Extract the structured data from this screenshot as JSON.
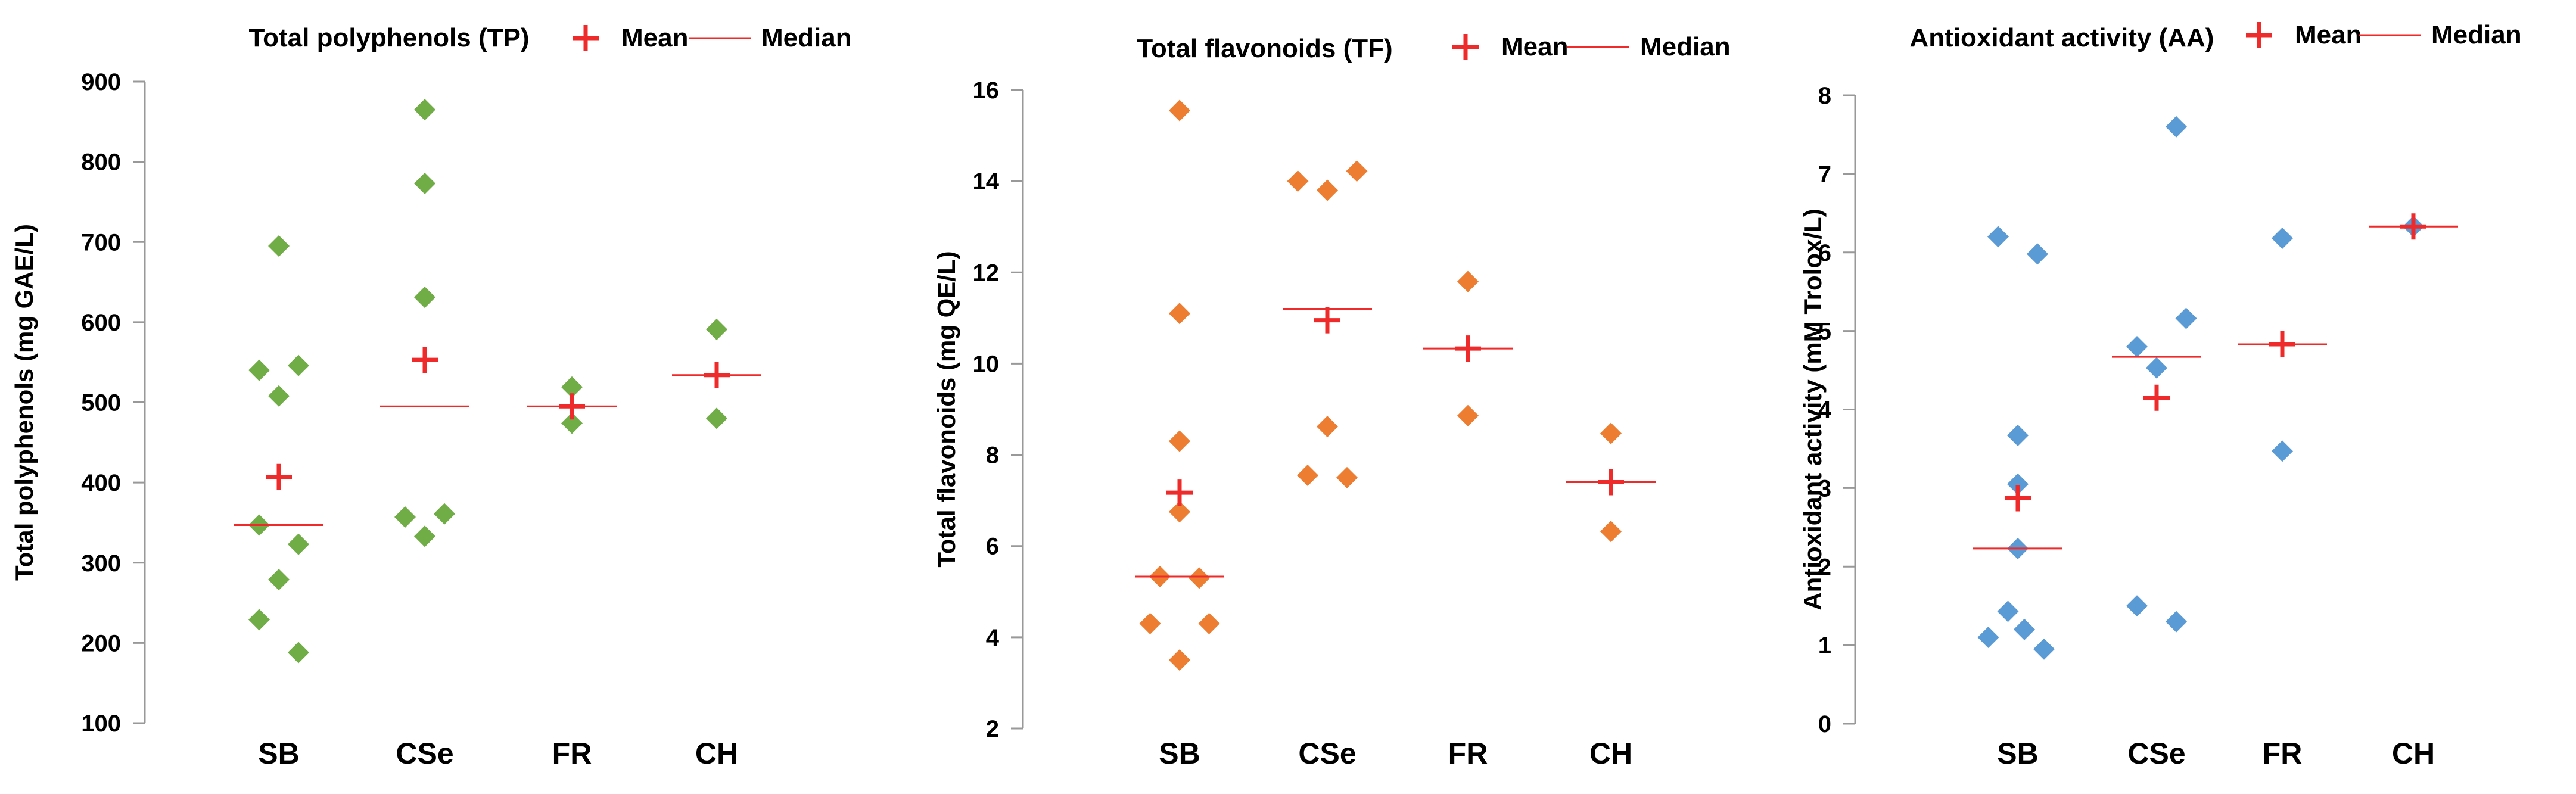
{
  "colors": {
    "mean_marker": "#ef2a2a",
    "median_line": "#ef2a2a",
    "axis": "#999999",
    "text": "#000000"
  },
  "legend": {
    "mean_label": "Mean",
    "median_label": "Median"
  },
  "chart_data": [
    {
      "type": "scatter",
      "title": "Total polyphenols (TP)",
      "ylabel": "Total polyphenols (mg GAE/L)",
      "xlabel": "",
      "categories": [
        "SB",
        "CSe",
        "FR",
        "CH"
      ],
      "ylim": [
        100,
        900
      ],
      "yticks": [
        100,
        200,
        300,
        400,
        500,
        600,
        700,
        800,
        900
      ],
      "legend_position": "top",
      "grid": false,
      "point_color": "#70ad47",
      "points": [
        {
          "category": "SB",
          "offset": 0.0,
          "value": 695
        },
        {
          "category": "SB",
          "offset": -0.3,
          "value": 540
        },
        {
          "category": "SB",
          "offset": 0.3,
          "value": 546
        },
        {
          "category": "SB",
          "offset": 0.0,
          "value": 508
        },
        {
          "category": "SB",
          "offset": -0.3,
          "value": 347
        },
        {
          "category": "SB",
          "offset": 0.3,
          "value": 323
        },
        {
          "category": "SB",
          "offset": 0.0,
          "value": 279
        },
        {
          "category": "SB",
          "offset": -0.3,
          "value": 229
        },
        {
          "category": "SB",
          "offset": 0.3,
          "value": 188
        },
        {
          "category": "CSe",
          "offset": 0.0,
          "value": 865
        },
        {
          "category": "CSe",
          "offset": 0.0,
          "value": 773
        },
        {
          "category": "CSe",
          "offset": 0.0,
          "value": 631
        },
        {
          "category": "CSe",
          "offset": -0.3,
          "value": 357
        },
        {
          "category": "CSe",
          "offset": 0.3,
          "value": 361
        },
        {
          "category": "CSe",
          "offset": 0.0,
          "value": 333
        },
        {
          "category": "FR",
          "offset": 0.0,
          "value": 519
        },
        {
          "category": "FR",
          "offset": 0.0,
          "value": 474
        },
        {
          "category": "CH",
          "offset": 0.0,
          "value": 591
        },
        {
          "category": "CH",
          "offset": 0.0,
          "value": 480
        }
      ],
      "means": [
        407,
        553,
        495,
        534
      ],
      "medians": [
        347,
        495,
        495,
        534
      ]
    },
    {
      "type": "scatter",
      "title": "Total flavonoids (TF)",
      "ylabel": "Total flavonoids (mg QE/L)",
      "xlabel": "",
      "categories": [
        "SB",
        "CSe",
        "FR",
        "CH"
      ],
      "ylim": [
        2,
        16
      ],
      "yticks": [
        2,
        4,
        6,
        8,
        10,
        12,
        14,
        16
      ],
      "legend_position": "top",
      "grid": false,
      "point_color": "#ed7d31",
      "points": [
        {
          "category": "SB",
          "offset": 0.0,
          "value": 15.55
        },
        {
          "category": "SB",
          "offset": 0.0,
          "value": 11.1
        },
        {
          "category": "SB",
          "offset": 0.0,
          "value": 8.3
        },
        {
          "category": "SB",
          "offset": 0.0,
          "value": 6.75
        },
        {
          "category": "SB",
          "offset": -0.3,
          "value": 5.33
        },
        {
          "category": "SB",
          "offset": 0.3,
          "value": 5.3
        },
        {
          "category": "SB",
          "offset": -0.45,
          "value": 4.3
        },
        {
          "category": "SB",
          "offset": 0.45,
          "value": 4.3
        },
        {
          "category": "SB",
          "offset": 0.0,
          "value": 3.5
        },
        {
          "category": "CSe",
          "offset": -0.45,
          "value": 14.0
        },
        {
          "category": "CSe",
          "offset": 0.0,
          "value": 13.8
        },
        {
          "category": "CSe",
          "offset": 0.45,
          "value": 14.22
        },
        {
          "category": "CSe",
          "offset": 0.0,
          "value": 8.62
        },
        {
          "category": "CSe",
          "offset": -0.3,
          "value": 7.55
        },
        {
          "category": "CSe",
          "offset": 0.3,
          "value": 7.5
        },
        {
          "category": "FR",
          "offset": 0.0,
          "value": 11.8
        },
        {
          "category": "FR",
          "offset": 0.0,
          "value": 8.86
        },
        {
          "category": "CH",
          "offset": 0.0,
          "value": 8.47
        },
        {
          "category": "CH",
          "offset": 0.0,
          "value": 6.32
        }
      ],
      "means": [
        7.17,
        10.95,
        10.33,
        7.4
      ],
      "medians": [
        5.33,
        11.2,
        10.33,
        7.4
      ]
    },
    {
      "type": "scatter",
      "title": "Antioxidant activity (AA)",
      "ylabel": "Antioxidant activity (mM Trolox/L)",
      "xlabel": "",
      "categories": [
        "SB",
        "CSe",
        "FR",
        "CH"
      ],
      "ylim": [
        0,
        8
      ],
      "yticks": [
        0,
        1,
        2,
        3,
        4,
        5,
        6,
        7,
        8
      ],
      "legend_position": "top",
      "grid": false,
      "point_color": "#5b9bd5",
      "points": [
        {
          "category": "SB",
          "offset": -0.3,
          "value": 6.2
        },
        {
          "category": "SB",
          "offset": 0.3,
          "value": 5.98
        },
        {
          "category": "SB",
          "offset": 0.0,
          "value": 3.67
        },
        {
          "category": "SB",
          "offset": 0.0,
          "value": 3.05
        },
        {
          "category": "SB",
          "offset": 0.0,
          "value": 2.23
        },
        {
          "category": "SB",
          "offset": -0.15,
          "value": 1.43
        },
        {
          "category": "SB",
          "offset": 0.1,
          "value": 1.2
        },
        {
          "category": "SB",
          "offset": -0.45,
          "value": 1.1
        },
        {
          "category": "SB",
          "offset": 0.4,
          "value": 0.95
        },
        {
          "category": "CSe",
          "offset": 0.3,
          "value": 7.6
        },
        {
          "category": "CSe",
          "offset": 0.45,
          "value": 5.16
        },
        {
          "category": "CSe",
          "offset": -0.3,
          "value": 4.8
        },
        {
          "category": "CSe",
          "offset": 0.0,
          "value": 4.53
        },
        {
          "category": "CSe",
          "offset": -0.3,
          "value": 1.5
        },
        {
          "category": "CSe",
          "offset": 0.3,
          "value": 1.3
        },
        {
          "category": "FR",
          "offset": 0.0,
          "value": 6.18
        },
        {
          "category": "FR",
          "offset": 0.0,
          "value": 3.47
        },
        {
          "category": "CH",
          "offset": 0.0,
          "value": 6.33
        }
      ],
      "means": [
        2.87,
        4.15,
        4.83,
        6.33
      ],
      "medians": [
        2.23,
        4.67,
        4.83,
        6.33
      ]
    }
  ]
}
